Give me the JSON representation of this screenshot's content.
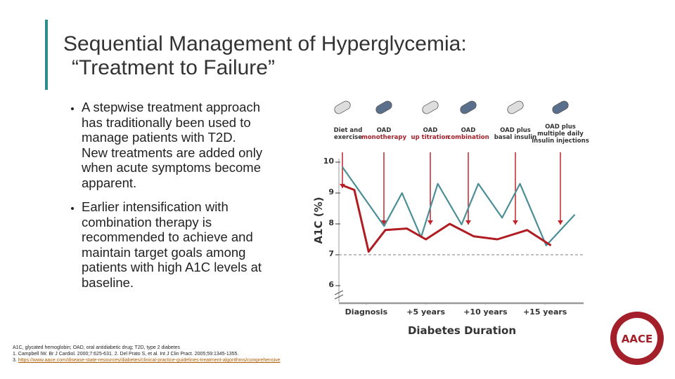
{
  "header": {
    "title_lines": [
      "Sequential Management of Hyperglycemia:",
      "“Treatment to Failure”"
    ]
  },
  "bullets": [
    "A stepwise treatment approach has traditionally been used to manage patients with T2D. New treatments are added only when acute symptoms become apparent.",
    "Earlier intensification with combination therapy is recommended to achieve and maintain target goals among patients with high A1C levels at baseline."
  ],
  "footnotes": {
    "abbreviations": "A1C, glycated hemoglobin; OAD, oral antidiabetic drug; T2D, type 2 diabetes",
    "references": "1. Campbell IW. Br J Cardiol. 2000;7:625-631. 2. Del Prato S, et al. Int J Clin Pract. 2005;59:1345-1355.",
    "reference_3_number": "3.",
    "reference_3_url": "https://www.aace.com/disease-state-resources/diabetes/clinical-practice-guidelines-treatment-algorithms/comprehensive"
  },
  "logo_text": "AACE",
  "chart_data": {
    "type": "line",
    "x_label": "Diabetes Duration",
    "y_label": "A1C (%)",
    "xlim": [
      -2,
      18
    ],
    "xticks": [
      {
        "value": 0,
        "label": "Diagnosis"
      },
      {
        "value": 5,
        "label": "+5 years"
      },
      {
        "value": 10,
        "label": "+10 years"
      },
      {
        "value": 15,
        "label": "+15 years"
      }
    ],
    "ylim": [
      6,
      10
    ],
    "yticks": [
      6,
      7,
      8,
      9,
      10
    ],
    "target_line": 7,
    "treatment_steps": [
      [
        "Diet and",
        "exercise"
      ],
      [
        "OAD",
        "monotherapy"
      ],
      [
        "OAD",
        "up titration"
      ],
      [
        "OAD",
        "combination"
      ],
      [
        "OAD plus",
        "basal insulin"
      ],
      [
        "OAD plus",
        "multiple daily",
        "insulin injections"
      ]
    ],
    "series": [
      {
        "color": "#4b8e97",
        "x": [
          -2,
          1.5,
          3.0,
          4.6,
          6.0,
          8.0,
          9.4,
          11.4,
          12.9,
          15.1,
          17.5
        ],
        "values": [
          9.84,
          7.93,
          9.0,
          7.57,
          9.3,
          7.98,
          9.3,
          8.2,
          9.3,
          7.3,
          8.3
        ]
      },
      {
        "color": "#b01c22",
        "x": [
          -2,
          -1,
          0.2,
          1.6,
          3.4,
          5,
          7,
          9,
          11,
          13.5,
          15.5
        ],
        "values": [
          9.25,
          9.1,
          7.1,
          7.8,
          7.85,
          7.5,
          8.0,
          7.6,
          7.5,
          7.8,
          7.3
        ]
      }
    ]
  }
}
